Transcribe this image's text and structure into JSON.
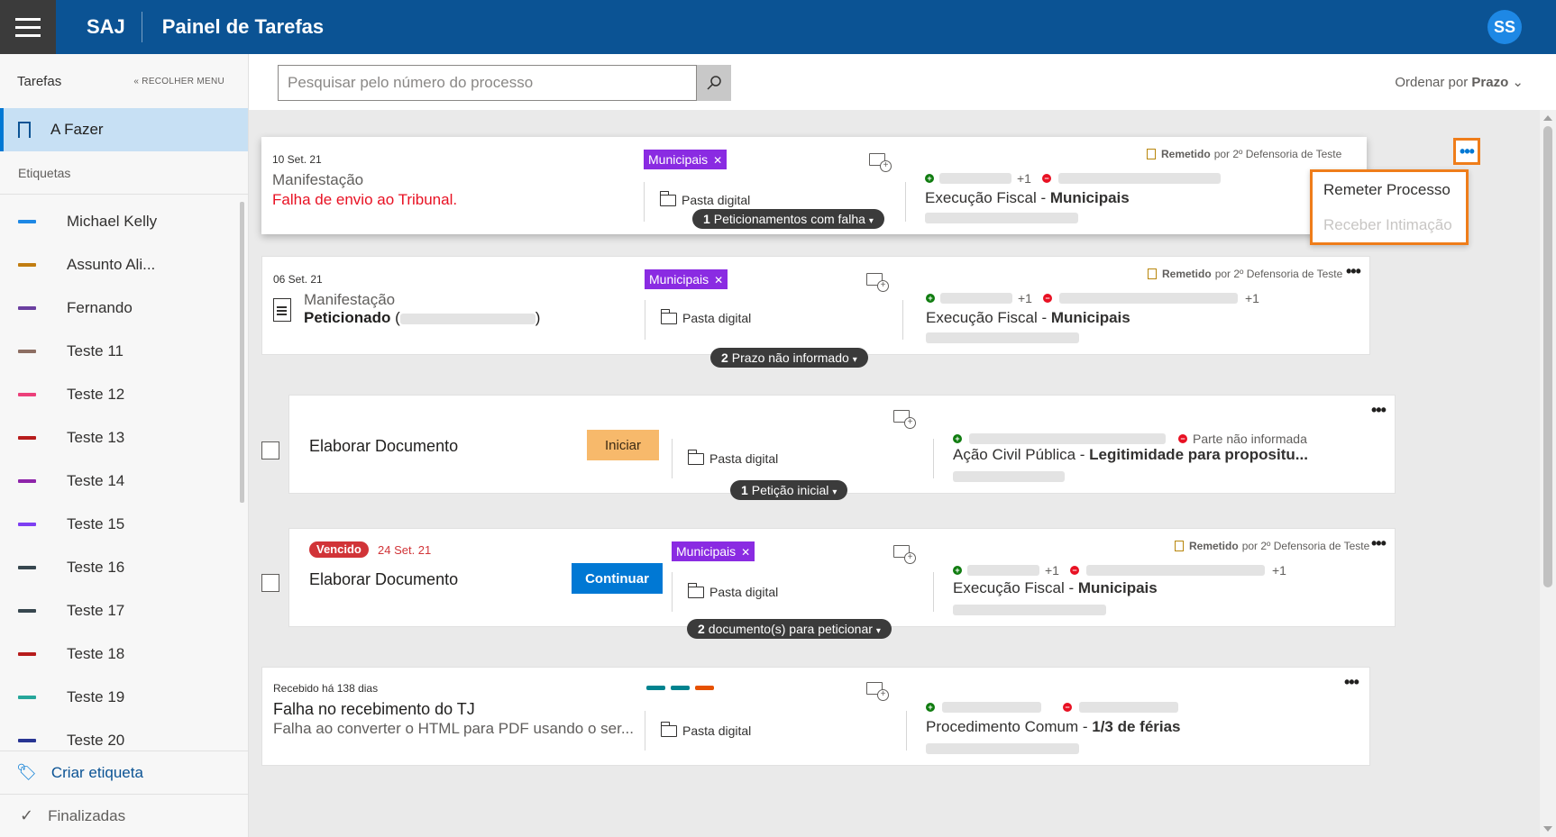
{
  "header": {
    "brand": "SAJ",
    "title": "Painel de Tarefas",
    "avatar_initials": "SS"
  },
  "sidebar": {
    "title": "Tarefas",
    "collapse_label": "« RECOLHER MENU",
    "active_item": "A Fazer",
    "section_label": "Etiquetas",
    "labels": [
      {
        "name": "Michael Kelly",
        "color": "#1e88e5"
      },
      {
        "name": "Assunto Ali...",
        "color": "#c17d11"
      },
      {
        "name": "Fernando",
        "color": "#6b3fa0"
      },
      {
        "name": "Teste 11",
        "color": "#8d6e63"
      },
      {
        "name": "Teste 12",
        "color": "#ec407a"
      },
      {
        "name": "Teste 13",
        "color": "#b71c1c"
      },
      {
        "name": "Teste 14",
        "color": "#8e24aa"
      },
      {
        "name": "Teste 15",
        "color": "#7e3ff2"
      },
      {
        "name": "Teste 16",
        "color": "#37474f"
      },
      {
        "name": "Teste 17",
        "color": "#37474f"
      },
      {
        "name": "Teste 18",
        "color": "#b71c1c"
      },
      {
        "name": "Teste 19",
        "color": "#26a69a"
      },
      {
        "name": "Teste 20",
        "color": "#283593"
      }
    ],
    "create_label": "Criar etiqueta",
    "finished_label": "Finalizadas"
  },
  "toolbar": {
    "search_placeholder": "Pesquisar pelo número do processo",
    "sort_prefix": "Ordenar por",
    "sort_value": "Prazo"
  },
  "cards": [
    {
      "date": "10 Set. 21",
      "kind": "Manifestação",
      "status": "Falha de envio ao Tribunal.",
      "tag": "Municipais",
      "folder": "Pasta digital",
      "plus_left": "+1",
      "classe": "Execução Fiscal - ",
      "classe_bold": "Municipais",
      "remetido_bold": "Remetido",
      "remetido_rest": "por 2º Defensoria de Teste",
      "pill_count": "1",
      "pill_label": "Peticionamentos com falha"
    },
    {
      "date": "06 Set. 21",
      "kind": "Manifestação",
      "status": "Peticionado",
      "status_paren_open": "(",
      "status_paren_close": ")",
      "tag": "Municipais",
      "folder": "Pasta digital",
      "plus_left": "+1",
      "plus_right": "+1",
      "classe": "Execução Fiscal - ",
      "classe_bold": "Municipais",
      "remetido_bold": "Remetido",
      "remetido_rest": "por 2º Defensoria de Teste",
      "pill_count": "2",
      "pill_label": "Prazo não informado"
    },
    {
      "title": "Elaborar Documento",
      "action": "Iniciar",
      "folder": "Pasta digital",
      "party_missing": "Parte não informada",
      "classe": "Ação Civil Pública - ",
      "classe_bold": "Legitimidade para propositu...",
      "pill_count": "1",
      "pill_label": "Petição inicial"
    },
    {
      "overdue_badge": "Vencido",
      "date": "24 Set. 21",
      "title": "Elaborar Documento",
      "action": "Continuar",
      "tag": "Municipais",
      "folder": "Pasta digital",
      "plus_left": "+1",
      "plus_right": "+1",
      "classe": "Execução Fiscal - ",
      "classe_bold": "Municipais",
      "remetido_bold": "Remetido",
      "remetido_rest": "por 2º Defensoria de Teste",
      "pill_count": "2",
      "pill_label": "documento(s) para peticionar"
    },
    {
      "date": "Recebido há 138 dias",
      "title": "Falha no recebimento do TJ",
      "sub": "Falha ao converter o HTML para PDF usando o ser...",
      "folder": "Pasta digital",
      "classe": "Procedimento Comum - ",
      "classe_bold": "1/3 de férias",
      "bar_colors": [
        "#00838f",
        "#00838f",
        "#e65100"
      ]
    }
  ],
  "context_menu": {
    "items": [
      {
        "label": "Remeter Processo",
        "enabled": true
      },
      {
        "label": "Receber Intimação",
        "enabled": false
      }
    ],
    "highlight_color": "#ef7d1a"
  }
}
